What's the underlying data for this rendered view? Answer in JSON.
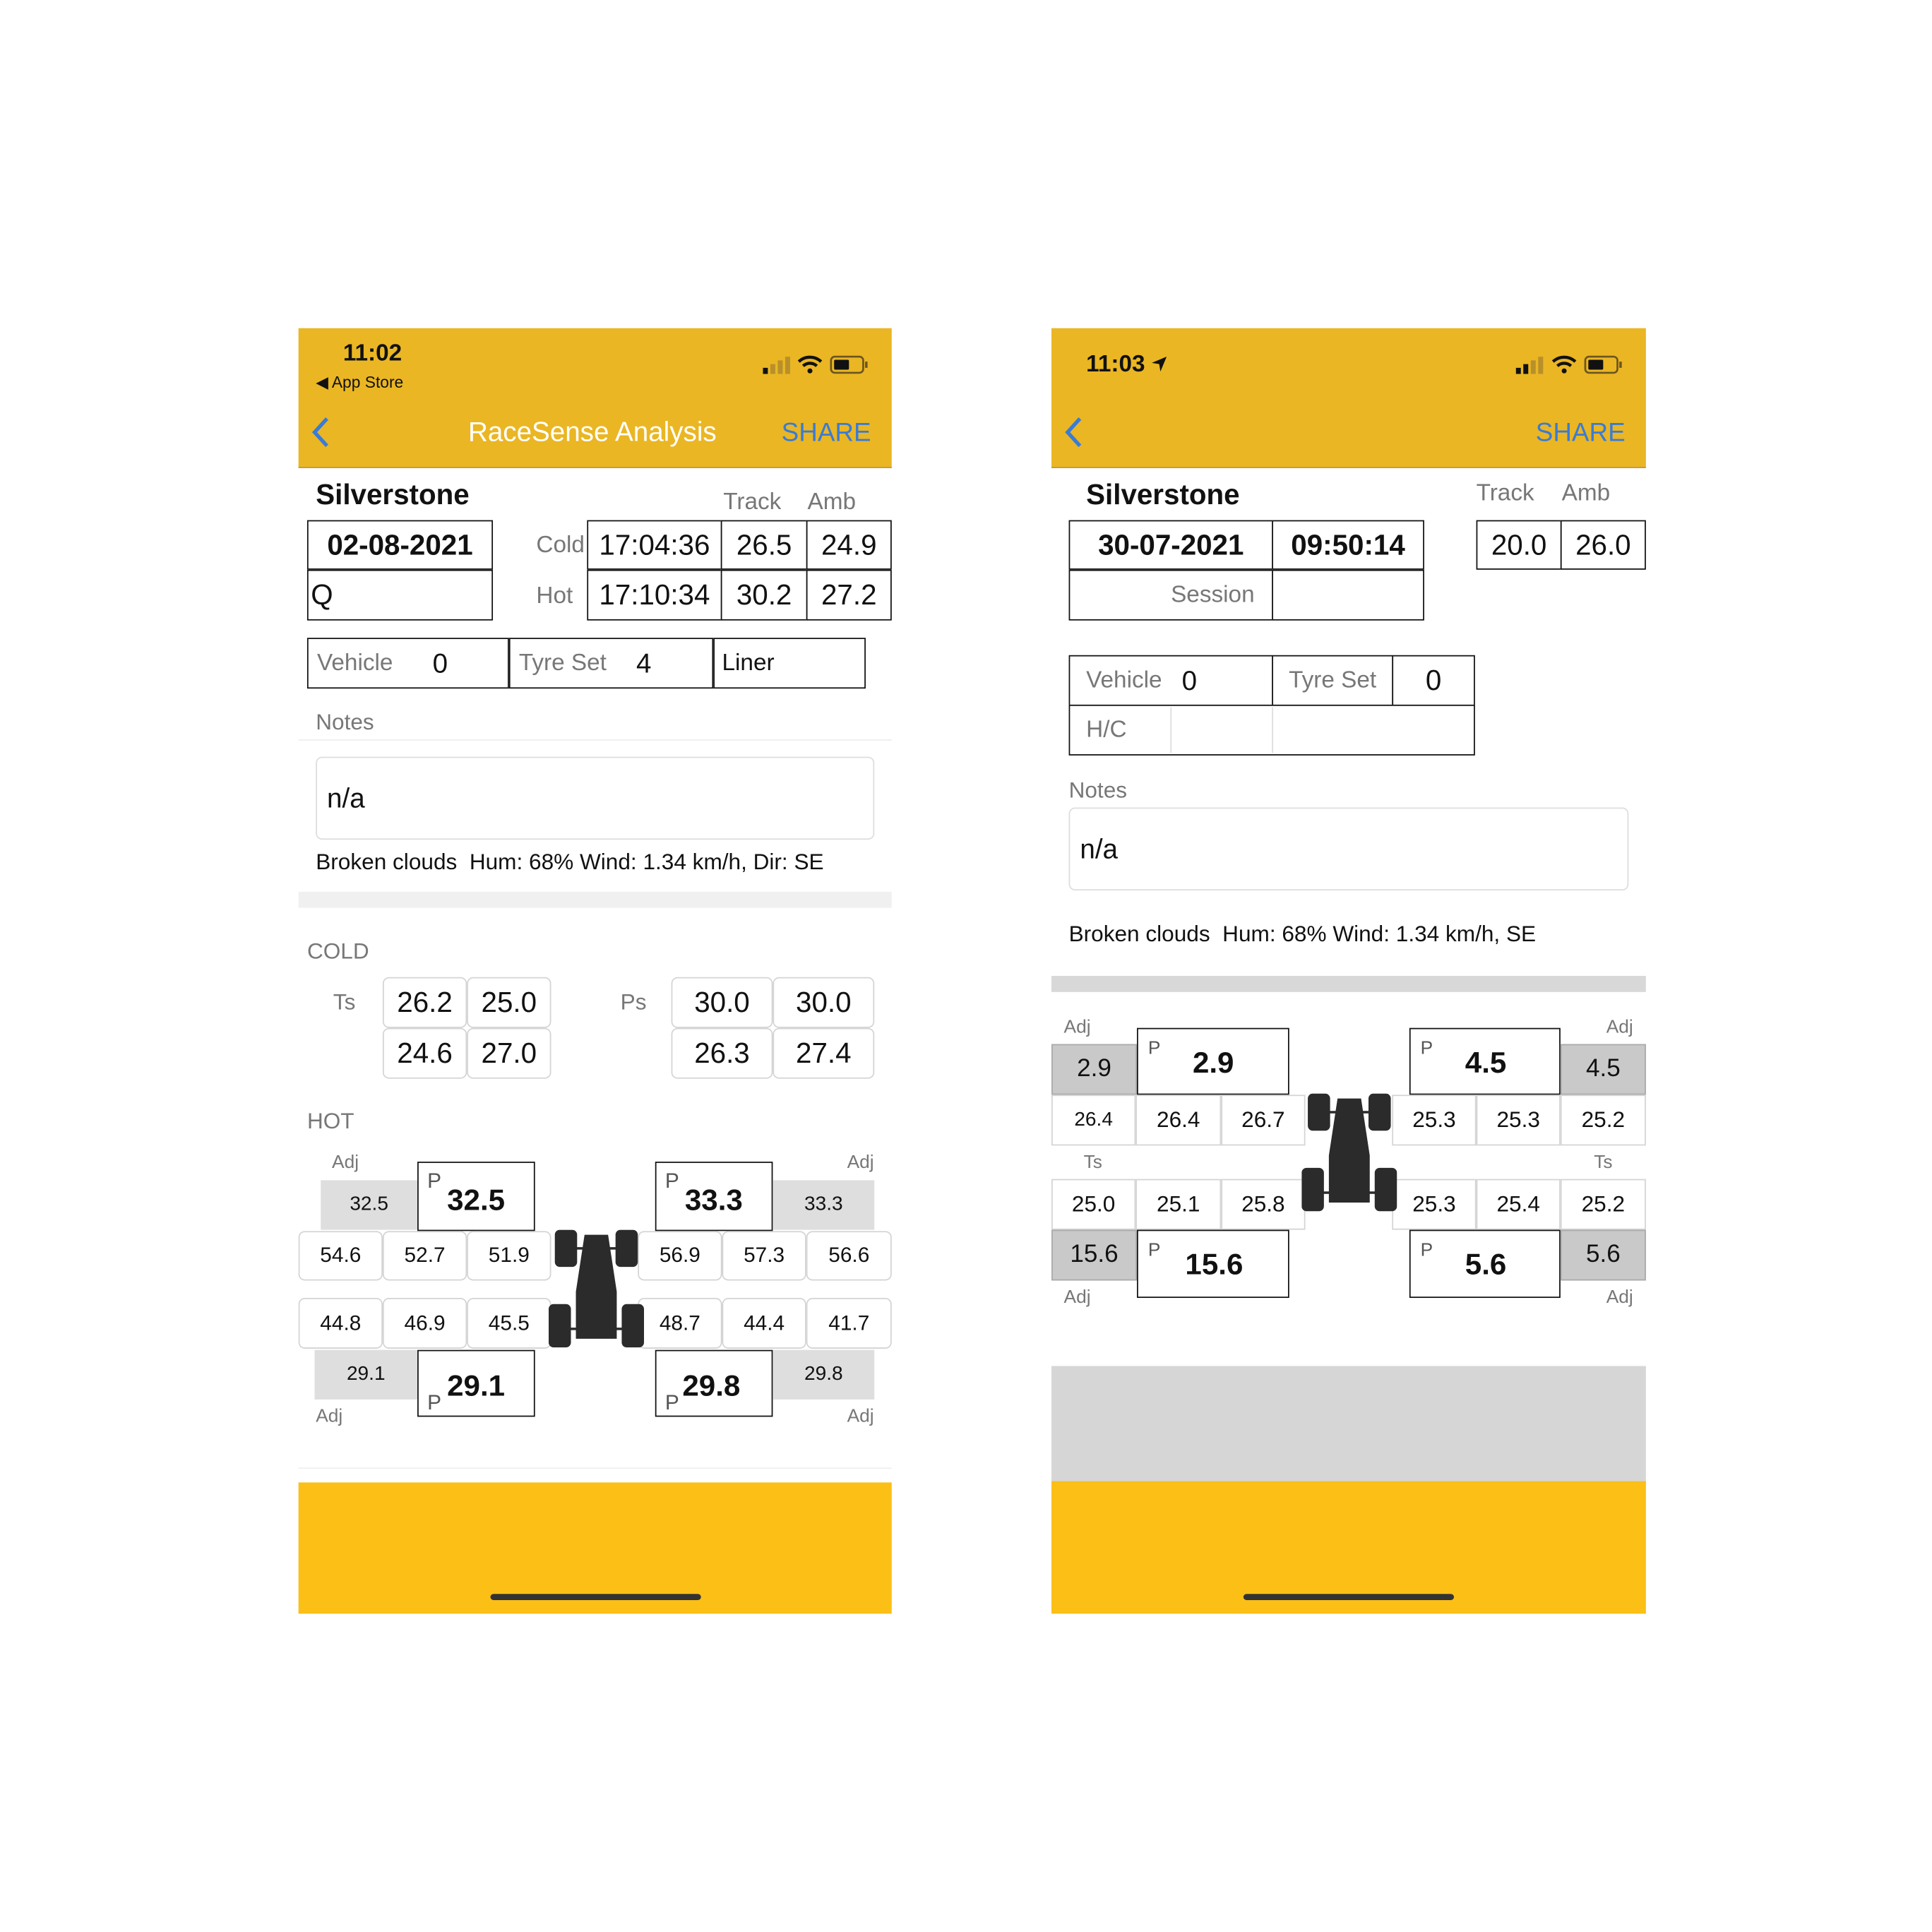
{
  "colors": {
    "header": "#EAB623",
    "footer": "#FBBF16",
    "accent_blue": "#3a7bd5",
    "adj_gray": "#dedede"
  },
  "left": {
    "status": {
      "time": "11:02",
      "back_app": "◀ App Store",
      "icons": [
        "signal-icon",
        "wifi-icon",
        "battery-icon"
      ]
    },
    "nav": {
      "title": "RaceSense Analysis",
      "share": "SHARE",
      "back_icon": "chevron-left-icon"
    },
    "track_name": "Silverstone",
    "col_labels": {
      "track": "Track",
      "amb": "Amb"
    },
    "date": "02-08-2021",
    "session": "Q",
    "cold": {
      "label": "Cold",
      "time": "17:04:36",
      "track": "26.5",
      "amb": "24.9"
    },
    "hot": {
      "label": "Hot",
      "time": "17:10:34",
      "track": "30.2",
      "amb": "27.2"
    },
    "vehicle": {
      "label": "Vehicle",
      "value": "0"
    },
    "tyre_set": {
      "label": "Tyre Set",
      "value": "4"
    },
    "liner": "Liner",
    "notes_label": "Notes",
    "notes": "n/a",
    "weather": "Broken clouds  Hum: 68% Wind: 1.34 km/h, Dir: SE",
    "cold_section": {
      "title": "COLD",
      "ts_label": "Ts",
      "ts": [
        "26.2",
        "25.0",
        "24.6",
        "27.0"
      ],
      "ps_label": "Ps",
      "ps": [
        "30.0",
        "30.0",
        "26.3",
        "27.4"
      ]
    },
    "hot_section": {
      "title": "HOT",
      "adj_label": "Adj",
      "p_label": "P",
      "fl": {
        "adj": "32.5",
        "p": "32.5",
        "temps": [
          "54.6",
          "52.7",
          "51.9"
        ]
      },
      "fr": {
        "adj": "33.3",
        "p": "33.3",
        "temps": [
          "56.9",
          "57.3",
          "56.6"
        ]
      },
      "rl": {
        "adj": "29.1",
        "p": "29.1",
        "temps": [
          "44.8",
          "46.9",
          "45.5"
        ]
      },
      "rr": {
        "adj": "29.8",
        "p": "29.8",
        "temps": [
          "48.7",
          "44.4",
          "41.7"
        ]
      }
    }
  },
  "right": {
    "status": {
      "time": "11:03",
      "location_icon": "location-arrow-icon",
      "icons": [
        "signal-icon",
        "wifi-icon",
        "battery-icon"
      ]
    },
    "nav": {
      "share": "SHARE",
      "back_icon": "chevron-left-icon"
    },
    "track_name": "Silverstone",
    "col_labels": {
      "track": "Track",
      "amb": "Amb"
    },
    "date": "30-07-2021",
    "time": "09:50:14",
    "session_placeholder": "Session",
    "track": "20.0",
    "amb": "26.0",
    "vehicle": {
      "label": "Vehicle",
      "value": "0"
    },
    "tyre_set": {
      "label": "Tyre Set",
      "value": "0"
    },
    "hc_label": "H/C",
    "notes_label": "Notes",
    "notes": "n/a",
    "weather": "Broken clouds  Hum: 68% Wind: 1.34 km/h, SE",
    "tyres": {
      "adj_label": "Adj",
      "p_label": "P",
      "ts_label": "Ts",
      "fl": {
        "adj": "2.9",
        "p": "2.9",
        "temps": [
          "26.4",
          "26.4",
          "26.7"
        ]
      },
      "fr": {
        "adj": "4.5",
        "p": "4.5",
        "temps": [
          "25.3",
          "25.3",
          "25.2"
        ]
      },
      "rl": {
        "adj": "15.6",
        "p": "15.6",
        "temps": [
          "25.0",
          "25.1",
          "25.8"
        ]
      },
      "rr": {
        "adj": "5.6",
        "p": "5.6",
        "temps": [
          "25.3",
          "25.4",
          "25.2"
        ]
      }
    }
  }
}
